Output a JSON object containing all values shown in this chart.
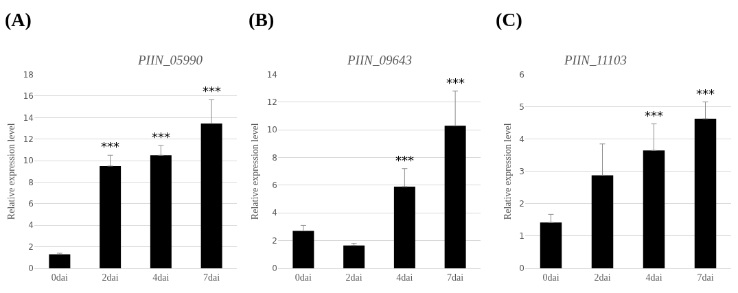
{
  "chart_data": [
    {
      "type": "bar",
      "title": "PIIN_05990",
      "ylabel": "Relative expression level",
      "categories": [
        "0dai",
        "2dai",
        "4dai",
        "7dai"
      ],
      "values": [
        1.3,
        9.5,
        10.5,
        13.45
      ],
      "color": "#000000",
      "errors": [
        [
          1.3,
          1.4
        ],
        [
          9.5,
          10.5
        ],
        [
          10.5,
          11.4
        ],
        [
          13.45,
          15.65
        ]
      ],
      "ylim": [
        0,
        18
      ],
      "yticks": [
        0,
        2,
        4,
        6,
        8,
        10,
        12,
        14,
        16,
        18
      ],
      "grid": "y",
      "annotations": [
        "(A)",
        {
          "text": "***",
          "x": "2dai",
          "y": 10.5
        },
        {
          "text": "***",
          "x": "4dai",
          "y": 11.4
        },
        {
          "text": "***",
          "x": "7dai",
          "y": 15.65
        }
      ]
    },
    {
      "type": "bar",
      "title": "PIIN_09643",
      "ylabel": "Relative expression level",
      "categories": [
        "0dai",
        "2dai",
        "4dai",
        "7dai"
      ],
      "values": [
        2.7,
        1.65,
        5.9,
        10.3
      ],
      "color": "#000000",
      "errors": [
        [
          2.7,
          3.1
        ],
        [
          1.65,
          1.8
        ],
        [
          5.9,
          7.2
        ],
        [
          10.3,
          12.8
        ]
      ],
      "ylim": [
        0,
        14
      ],
      "yticks": [
        0,
        2,
        4,
        6,
        8,
        10,
        12,
        14
      ],
      "grid": "y",
      "annotations": [
        "(B)",
        {
          "text": "***",
          "x": "4dai",
          "y": 7.2
        },
        {
          "text": "***",
          "x": "7dai",
          "y": 12.8
        }
      ]
    },
    {
      "type": "bar",
      "title": "PIIN_11103",
      "ylabel": "Relative expression level",
      "categories": [
        "0dai",
        "2dai",
        "4dai",
        "7dai"
      ],
      "values": [
        1.42,
        2.88,
        3.65,
        4.63
      ],
      "color": "#000000",
      "errors": [
        [
          1.42,
          1.67
        ],
        [
          2.88,
          3.85
        ],
        [
          3.65,
          4.47
        ],
        [
          4.63,
          5.15
        ]
      ],
      "ylim": [
        0,
        6
      ],
      "yticks": [
        0,
        1,
        2,
        3,
        4,
        5,
        6
      ],
      "grid": "y",
      "annotations": [
        "(C)",
        {
          "text": "***",
          "x": "4dai",
          "y": 4.47
        },
        {
          "text": "***",
          "x": "7dai",
          "y": 5.15
        }
      ]
    }
  ]
}
